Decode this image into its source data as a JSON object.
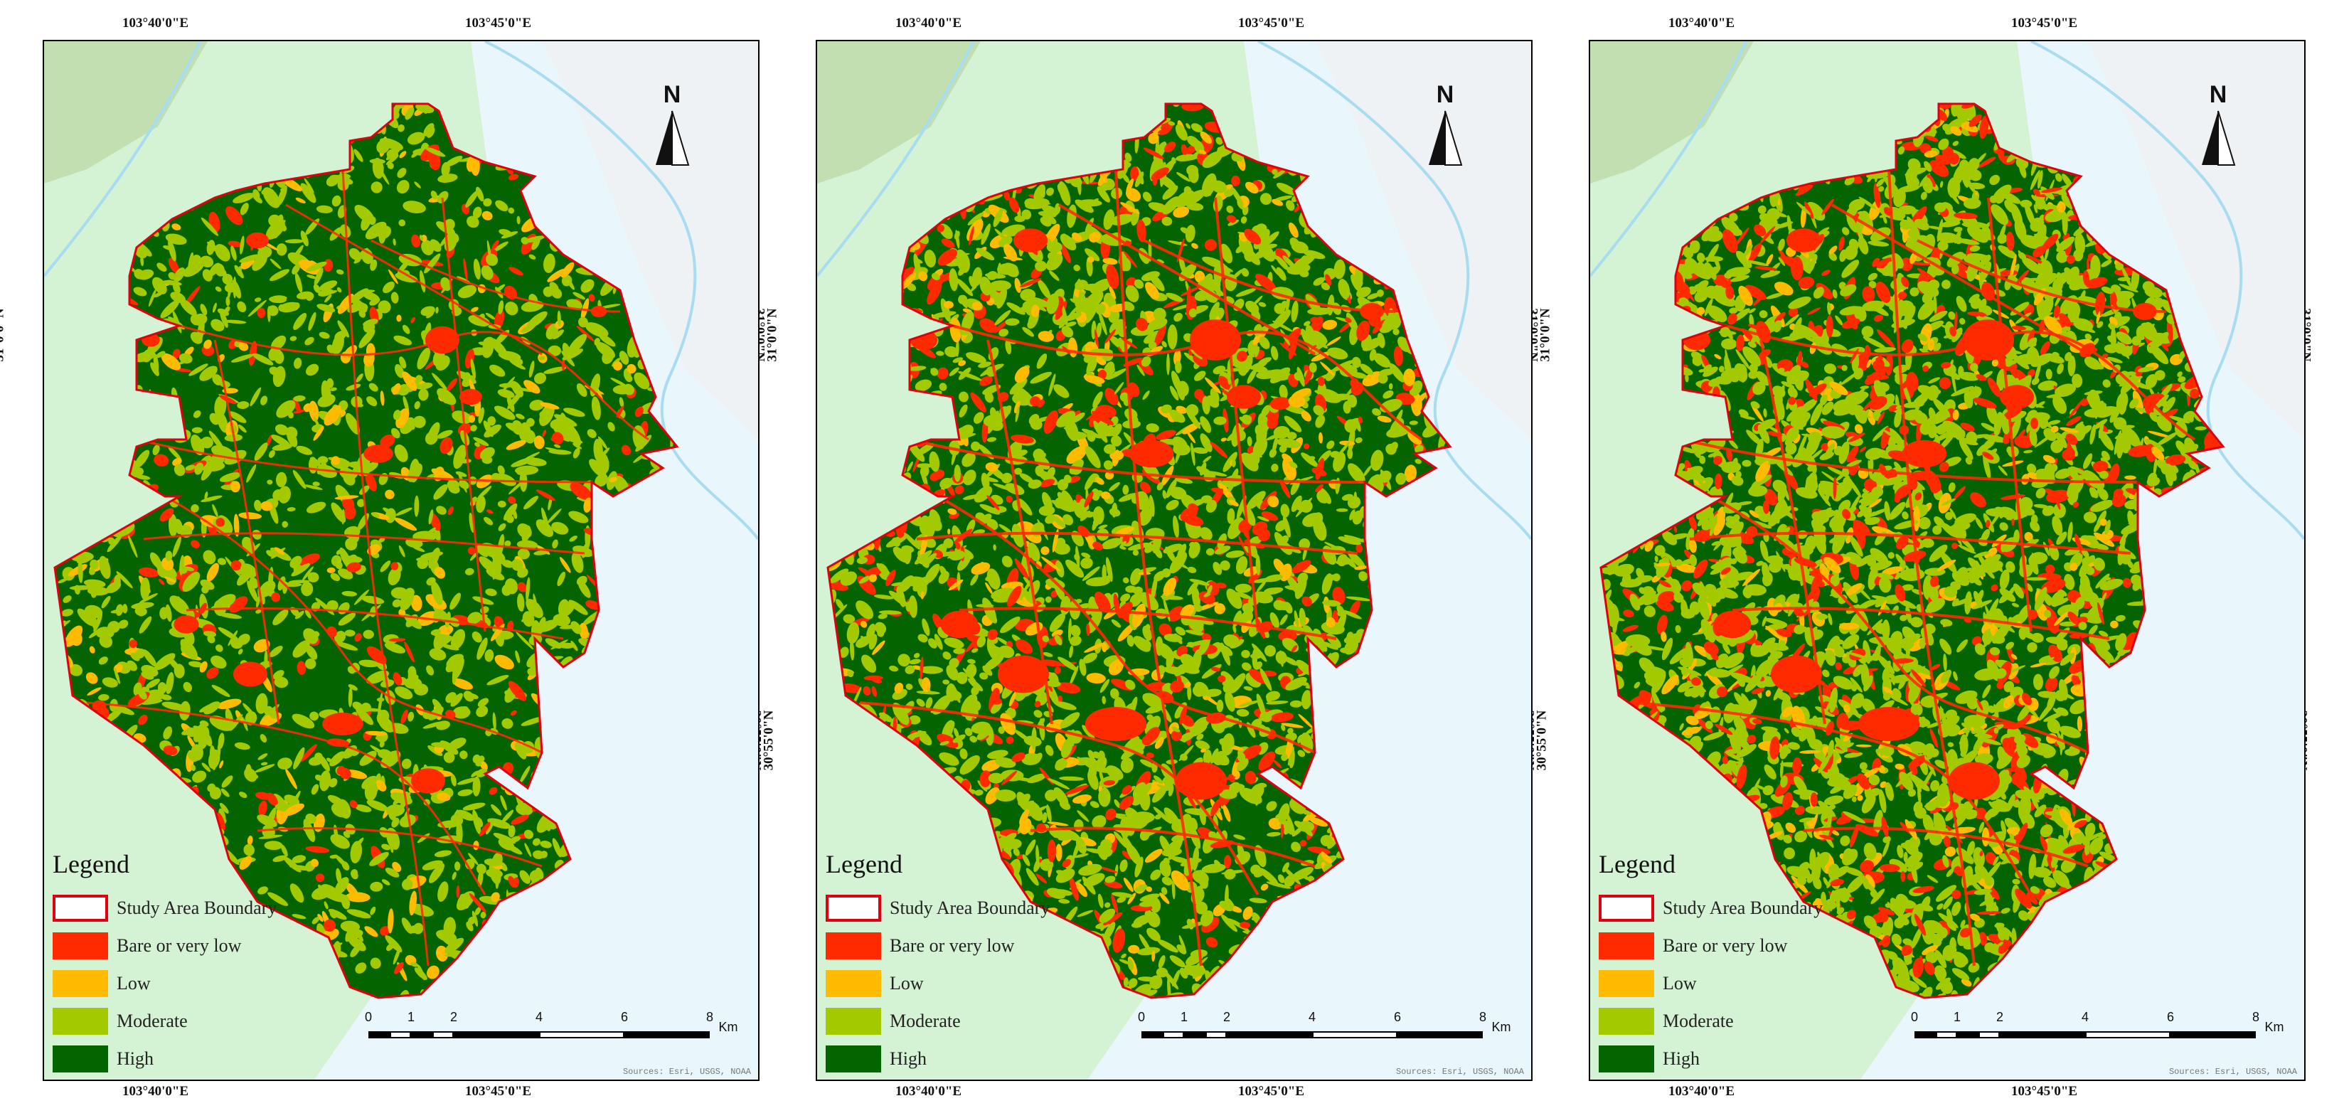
{
  "panels": [
    {
      "id": "panel-1",
      "dominant": "high"
    },
    {
      "id": "panel-2",
      "dominant": "mixed"
    },
    {
      "id": "panel-3",
      "dominant": "moderate"
    }
  ],
  "ticks": {
    "top_left": "103°40'0\"E",
    "top_right": "103°45'0\"E",
    "bottom_left": "103°40'0\"E",
    "bottom_right": "103°45'0\"E",
    "lat_upper": "31°0'0\"N",
    "lat_lower": "30°55'0\"N"
  },
  "north_label": "N",
  "legend": {
    "title": "Legend",
    "items": [
      {
        "label": "Study Area Boundary",
        "color": "#ffffff",
        "stroke": "#e0000f"
      },
      {
        "label": "Bare or very low",
        "color": "#ff2a00"
      },
      {
        "label": "Low",
        "color": "#ffbb00"
      },
      {
        "label": "Moderate",
        "color": "#a3c900"
      },
      {
        "label": "High",
        "color": "#036400"
      }
    ]
  },
  "scale": {
    "labels": [
      "0",
      "1",
      "2",
      "4",
      "6",
      "8"
    ],
    "unit": "Km"
  },
  "source": "Sources: Esri, USGS, NOAA",
  "colors": {
    "bare": "#ff2a00",
    "low": "#ffbb00",
    "moderate": "#a3c900",
    "high": "#036400",
    "river": "#a8dcf0",
    "plain": "#d4f2d4",
    "water": "#e9f6fc"
  }
}
